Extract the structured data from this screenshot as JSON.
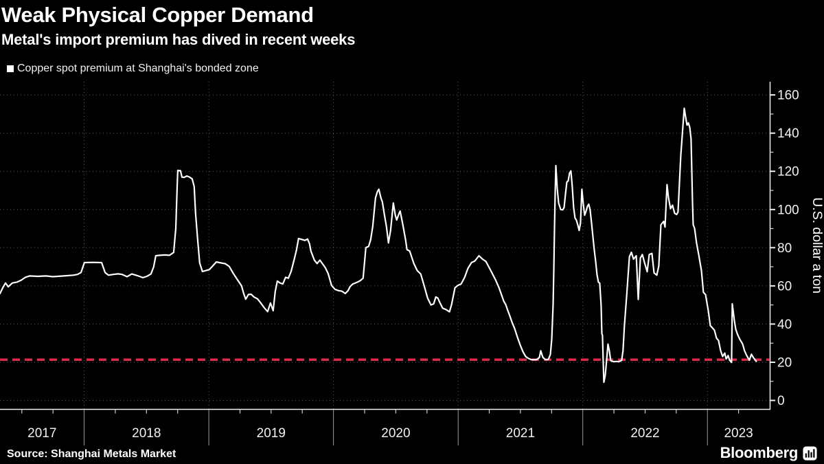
{
  "header": {
    "title": "Weak Physical Copper Demand",
    "subtitle": "Metal's import premium has dived in recent weeks"
  },
  "legend": {
    "marker_color": "#ffffff",
    "label": "Copper spot premium at Shanghai's bonded zone"
  },
  "source": {
    "label": "Source: Shanghai Metals Market"
  },
  "branding": {
    "wordmark": "Bloomberg",
    "mark": "bar-chart-icon"
  },
  "chart_data": {
    "type": "line",
    "title": "Weak Physical Copper Demand",
    "subtitle": "Metal's import premium has dived in recent weeks",
    "series_name": "Copper spot premium at Shanghai's bonded zone",
    "unit_label": "U.S. dollar a ton",
    "line_color": "#ffffff",
    "background_color": "#000000",
    "grid": "dotted",
    "legend_position": "top-left",
    "ylim": [
      0,
      160
    ],
    "yticks": [
      0,
      20,
      40,
      60,
      80,
      100,
      120,
      140,
      160
    ],
    "x_years": [
      "2017",
      "2018",
      "2019",
      "2020",
      "2021",
      "2022",
      "2023"
    ],
    "x_range": [
      2017.325,
      2023.5
    ],
    "reference_line": {
      "value": 21.3,
      "color": "#dc2a4c",
      "style": "dashed"
    },
    "series": [
      [
        2017.325,
        56
      ],
      [
        2017.347,
        59
      ],
      [
        2017.369,
        61.5
      ],
      [
        2017.391,
        59.5
      ],
      [
        2017.424,
        61.5
      ],
      [
        2017.463,
        62
      ],
      [
        2017.496,
        63
      ],
      [
        2017.529,
        64.5
      ],
      [
        2017.562,
        65.2
      ],
      [
        2017.628,
        65
      ],
      [
        2017.694,
        65.2
      ],
      [
        2017.749,
        64.8
      ],
      [
        2017.837,
        65.2
      ],
      [
        2017.914,
        65.6
      ],
      [
        2017.947,
        66
      ],
      [
        2017.975,
        67
      ],
      [
        2018.002,
        72.2
      ],
      [
        2018.068,
        72.3
      ],
      [
        2018.14,
        72.2
      ],
      [
        2018.168,
        67
      ],
      [
        2018.195,
        65.6
      ],
      [
        2018.234,
        66
      ],
      [
        2018.272,
        66.3
      ],
      [
        2018.305,
        66
      ],
      [
        2018.344,
        64.8
      ],
      [
        2018.382,
        66.2
      ],
      [
        2018.426,
        65.4
      ],
      [
        2018.47,
        64.3
      ],
      [
        2018.503,
        65
      ],
      [
        2018.536,
        66.2
      ],
      [
        2018.558,
        70
      ],
      [
        2018.575,
        75.8
      ],
      [
        2018.608,
        76
      ],
      [
        2018.647,
        76.2
      ],
      [
        2018.685,
        76
      ],
      [
        2018.718,
        77.5
      ],
      [
        2018.735,
        90
      ],
      [
        2018.746,
        112
      ],
      [
        2018.751,
        120.5
      ],
      [
        2018.773,
        120.3
      ],
      [
        2018.784,
        117
      ],
      [
        2018.801,
        116.8
      ],
      [
        2018.823,
        117.5
      ],
      [
        2018.845,
        117
      ],
      [
        2018.867,
        116
      ],
      [
        2018.883,
        112
      ],
      [
        2018.894,
        98
      ],
      [
        2018.911,
        84
      ],
      [
        2018.927,
        72
      ],
      [
        2018.949,
        67.5
      ],
      [
        2018.977,
        68
      ],
      [
        2019.004,
        68.5
      ],
      [
        2019.032,
        70.5
      ],
      [
        2019.06,
        72.5
      ],
      [
        2019.098,
        72
      ],
      [
        2019.131,
        71.6
      ],
      [
        2019.164,
        70.2
      ],
      [
        2019.197,
        66.5
      ],
      [
        2019.23,
        63.2
      ],
      [
        2019.263,
        60
      ],
      [
        2019.28,
        56
      ],
      [
        2019.296,
        53
      ],
      [
        2019.318,
        55.5
      ],
      [
        2019.34,
        55.6
      ],
      [
        2019.362,
        54.2
      ],
      [
        2019.39,
        53.2
      ],
      [
        2019.417,
        51
      ],
      [
        2019.445,
        48.5
      ],
      [
        2019.472,
        46.5
      ],
      [
        2019.494,
        51
      ],
      [
        2019.516,
        47
      ],
      [
        2019.533,
        57
      ],
      [
        2019.55,
        62.5
      ],
      [
        2019.572,
        61.5
      ],
      [
        2019.594,
        61
      ],
      [
        2019.616,
        64.5
      ],
      [
        2019.638,
        64
      ],
      [
        2019.66,
        67.5
      ],
      [
        2019.682,
        73
      ],
      [
        2019.704,
        79
      ],
      [
        2019.72,
        84.8
      ],
      [
        2019.748,
        84.3
      ],
      [
        2019.77,
        83.8
      ],
      [
        2019.792,
        84.5
      ],
      [
        2019.808,
        82
      ],
      [
        2019.819,
        78.2
      ],
      [
        2019.847,
        73.5
      ],
      [
        2019.869,
        71.7
      ],
      [
        2019.891,
        73.5
      ],
      [
        2019.913,
        71.5
      ],
      [
        2019.935,
        69.5
      ],
      [
        2019.957,
        66.5
      ],
      [
        2019.985,
        60.2
      ],
      [
        2020.012,
        58.2
      ],
      [
        2020.04,
        57.5
      ],
      [
        2020.067,
        57.2
      ],
      [
        2020.095,
        56
      ],
      [
        2020.117,
        57.5
      ],
      [
        2020.133,
        59.6
      ],
      [
        2020.155,
        61
      ],
      [
        2020.172,
        61.4
      ],
      [
        2020.194,
        62
      ],
      [
        2020.216,
        62.8
      ],
      [
        2020.238,
        64
      ],
      [
        2020.26,
        80
      ],
      [
        2020.282,
        80.7
      ],
      [
        2020.298,
        84
      ],
      [
        2020.315,
        91
      ],
      [
        2020.337,
        106
      ],
      [
        2020.353,
        109.5
      ],
      [
        2020.364,
        110.6
      ],
      [
        2020.381,
        106
      ],
      [
        2020.392,
        104
      ],
      [
        2020.408,
        97.5
      ],
      [
        2020.425,
        91
      ],
      [
        2020.441,
        82.5
      ],
      [
        2020.458,
        89
      ],
      [
        2020.48,
        103.4
      ],
      [
        2020.496,
        97
      ],
      [
        2020.507,
        94.5
      ],
      [
        2020.524,
        97.5
      ],
      [
        2020.535,
        99.2
      ],
      [
        2020.551,
        94
      ],
      [
        2020.562,
        90.2
      ],
      [
        2020.579,
        84
      ],
      [
        2020.59,
        79
      ],
      [
        2020.612,
        78.2
      ],
      [
        2020.628,
        75
      ],
      [
        2020.645,
        71.7
      ],
      [
        2020.672,
        68
      ],
      [
        2020.7,
        66.2
      ],
      [
        2020.727,
        60.2
      ],
      [
        2020.755,
        53.6
      ],
      [
        2020.782,
        50
      ],
      [
        2020.804,
        50.6
      ],
      [
        2020.821,
        54.2
      ],
      [
        2020.837,
        53.6
      ],
      [
        2020.854,
        51.2
      ],
      [
        2020.876,
        48.3
      ],
      [
        2020.903,
        47.6
      ],
      [
        2020.931,
        46.4
      ],
      [
        2020.947,
        50
      ],
      [
        2020.975,
        59
      ],
      [
        2020.997,
        60.2
      ],
      [
        2021.024,
        61
      ],
      [
        2021.052,
        64.4
      ],
      [
        2021.079,
        69.2
      ],
      [
        2021.107,
        72.2
      ],
      [
        2021.134,
        73
      ],
      [
        2021.167,
        75.8
      ],
      [
        2021.196,
        74
      ],
      [
        2021.223,
        72.8
      ],
      [
        2021.262,
        68
      ],
      [
        2021.3,
        63.2
      ],
      [
        2021.328,
        59
      ],
      [
        2021.35,
        55
      ],
      [
        2021.366,
        52
      ],
      [
        2021.383,
        50
      ],
      [
        2021.399,
        47
      ],
      [
        2021.416,
        44
      ],
      [
        2021.432,
        41
      ],
      [
        2021.454,
        37.5
      ],
      [
        2021.476,
        33
      ],
      [
        2021.498,
        29
      ],
      [
        2021.52,
        25.5
      ],
      [
        2021.542,
        23
      ],
      [
        2021.564,
        22
      ],
      [
        2021.586,
        21.4
      ],
      [
        2021.608,
        21.3
      ],
      [
        2021.63,
        21.4
      ],
      [
        2021.652,
        22.5
      ],
      [
        2021.663,
        26
      ],
      [
        2021.68,
        22.5
      ],
      [
        2021.702,
        21.3
      ],
      [
        2021.724,
        21.5
      ],
      [
        2021.74,
        24
      ],
      [
        2021.751,
        32
      ],
      [
        2021.762,
        50
      ],
      [
        2021.768,
        70
      ],
      [
        2021.773,
        90
      ],
      [
        2021.779,
        110
      ],
      [
        2021.784,
        123
      ],
      [
        2021.795,
        111
      ],
      [
        2021.806,
        103.4
      ],
      [
        2021.823,
        100
      ],
      [
        2021.839,
        99.8
      ],
      [
        2021.85,
        101
      ],
      [
        2021.861,
        108
      ],
      [
        2021.872,
        114.4
      ],
      [
        2021.883,
        115
      ],
      [
        2021.894,
        119
      ],
      [
        2021.905,
        120.2
      ],
      [
        2021.916,
        112
      ],
      [
        2021.927,
        101
      ],
      [
        2021.938,
        95.6
      ],
      [
        2021.949,
        94.4
      ],
      [
        2021.96,
        92
      ],
      [
        2021.971,
        89
      ],
      [
        2021.982,
        93
      ],
      [
        2021.993,
        110.6
      ],
      [
        2022.004,
        103
      ],
      [
        2022.015,
        97
      ],
      [
        2022.026,
        99
      ],
      [
        2022.037,
        101.6
      ],
      [
        2022.048,
        102.8
      ],
      [
        2022.059,
        99.8
      ],
      [
        2022.07,
        93.2
      ],
      [
        2022.081,
        86
      ],
      [
        2022.092,
        79
      ],
      [
        2022.103,
        73
      ],
      [
        2022.114,
        66
      ],
      [
        2022.125,
        62
      ],
      [
        2022.136,
        61.4
      ],
      [
        2022.147,
        50
      ],
      [
        2022.153,
        35
      ],
      [
        2022.158,
        34
      ],
      [
        2022.164,
        20
      ],
      [
        2022.169,
        9.5
      ],
      [
        2022.18,
        13
      ],
      [
        2022.191,
        21
      ],
      [
        2022.202,
        29.5
      ],
      [
        2022.213,
        26
      ],
      [
        2022.224,
        20.8
      ],
      [
        2022.246,
        20.3
      ],
      [
        2022.268,
        20.4
      ],
      [
        2022.29,
        20.3
      ],
      [
        2022.312,
        21
      ],
      [
        2022.323,
        26
      ],
      [
        2022.334,
        38.9
      ],
      [
        2022.352,
        54.7
      ],
      [
        2022.374,
        75.2
      ],
      [
        2022.39,
        77.6
      ],
      [
        2022.407,
        74
      ],
      [
        2022.429,
        75.8
      ],
      [
        2022.445,
        52.9
      ],
      [
        2022.462,
        74.6
      ],
      [
        2022.478,
        76.4
      ],
      [
        2022.495,
        72.2
      ],
      [
        2022.517,
        67.4
      ],
      [
        2022.533,
        76.4
      ],
      [
        2022.555,
        77
      ],
      [
        2022.572,
        66.8
      ],
      [
        2022.594,
        65.6
      ],
      [
        2022.61,
        70.4
      ],
      [
        2022.627,
        92
      ],
      [
        2022.649,
        93.8
      ],
      [
        2022.66,
        90.8
      ],
      [
        2022.676,
        113
      ],
      [
        2022.687,
        106.4
      ],
      [
        2022.704,
        100.4
      ],
      [
        2022.72,
        102.2
      ],
      [
        2022.737,
        98
      ],
      [
        2022.753,
        97.4
      ],
      [
        2022.764,
        98.6
      ],
      [
        2022.786,
        128
      ],
      [
        2022.803,
        143.6
      ],
      [
        2022.814,
        153
      ],
      [
        2022.825,
        148.4
      ],
      [
        2022.836,
        144.2
      ],
      [
        2022.847,
        145.4
      ],
      [
        2022.858,
        143
      ],
      [
        2022.869,
        137
      ],
      [
        2022.875,
        120
      ],
      [
        2022.88,
        105
      ],
      [
        2022.886,
        92
      ],
      [
        2022.897,
        90.2
      ],
      [
        2022.913,
        82.4
      ],
      [
        2022.93,
        76.4
      ],
      [
        2022.952,
        68
      ],
      [
        2022.968,
        56.6
      ],
      [
        2022.985,
        55.4
      ],
      [
        2023.007,
        47
      ],
      [
        2023.023,
        39.2
      ],
      [
        2023.04,
        38
      ],
      [
        2023.056,
        36.8
      ],
      [
        2023.073,
        32.6
      ],
      [
        2023.089,
        31.4
      ],
      [
        2023.106,
        26
      ],
      [
        2023.122,
        23
      ],
      [
        2023.139,
        24.8
      ],
      [
        2023.15,
        21.7
      ],
      [
        2023.166,
        23.5
      ],
      [
        2023.177,
        21.1
      ],
      [
        2023.194,
        19.9
      ],
      [
        2023.199,
        50.6
      ],
      [
        2023.216,
        42
      ],
      [
        2023.227,
        37.4
      ],
      [
        2023.243,
        34.4
      ],
      [
        2023.26,
        32
      ],
      [
        2023.282,
        29.6
      ],
      [
        2023.298,
        26
      ],
      [
        2023.315,
        23.5
      ],
      [
        2023.337,
        21.1
      ],
      [
        2023.353,
        24.2
      ],
      [
        2023.37,
        22.3
      ],
      [
        2023.392,
        20.5
      ]
    ]
  }
}
